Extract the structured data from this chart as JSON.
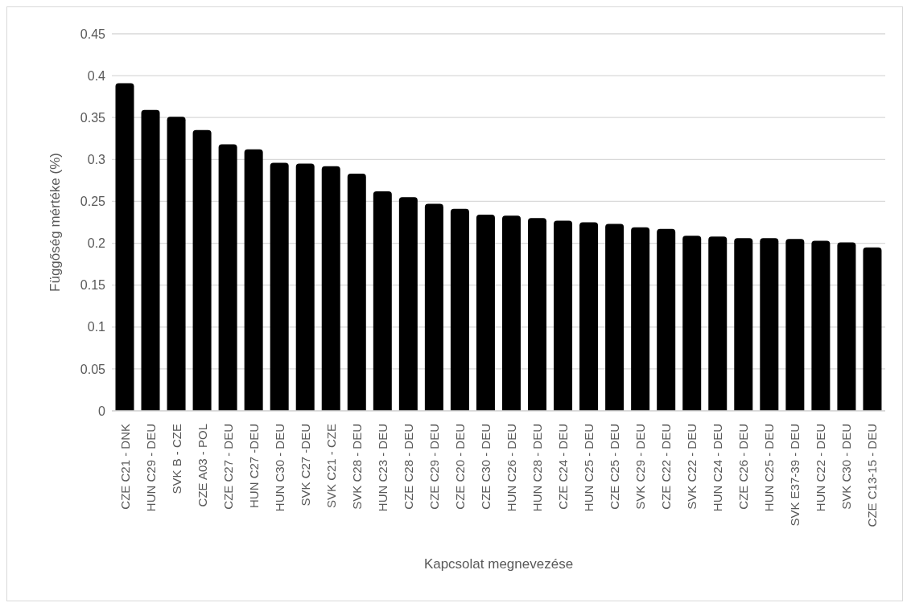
{
  "chart_data": {
    "type": "bar",
    "xlabel": "Kapcsolat megnevezése",
    "ylabel": "Függőség mértéke (%)",
    "categories": [
      "CZE C21 - DNK",
      "HUN C29 - DEU",
      "SVK B - CZE",
      "CZE A03 - POL",
      "CZE C27 - DEU",
      "HUN C27 -DEU",
      "HUN C30 - DEU",
      "SVK C27 -DEU",
      "SVK C21 - CZE",
      "SVK C28 - DEU",
      "HUN C23 - DEU",
      "CZE C28 - DEU",
      "CZE C29 - DEU",
      "CZE C20 - DEU",
      "CZE C30 - DEU",
      "HUN C26 - DEU",
      "HUN C28 - DEU",
      "CZE C24 - DEU",
      "HUN C25 - DEU",
      "CZE C25 - DEU",
      "SVK C29 - DEU",
      "CZE C22 - DEU",
      "SVK C22 - DEU",
      "HUN C24 - DEU",
      "CZE C26 - DEU",
      "HUN C25 - DEU",
      "SVK E37-39 - DEU",
      "HUN C22 - DEU",
      "SVK C30 - DEU",
      "CZE C13-15 - DEU"
    ],
    "values": [
      0.391,
      0.359,
      0.351,
      0.335,
      0.318,
      0.312,
      0.296,
      0.295,
      0.292,
      0.283,
      0.262,
      0.255,
      0.247,
      0.241,
      0.234,
      0.233,
      0.23,
      0.227,
      0.225,
      0.223,
      0.219,
      0.217,
      0.209,
      0.208,
      0.206,
      0.206,
      0.205,
      0.203,
      0.201,
      0.195
    ],
    "color": "#000000",
    "ylim": [
      0,
      0.45
    ],
    "yticks": [
      0,
      0.05,
      0.1,
      0.15,
      0.2,
      0.25,
      0.3,
      0.35,
      0.4,
      0.45
    ],
    "grid": "y"
  }
}
